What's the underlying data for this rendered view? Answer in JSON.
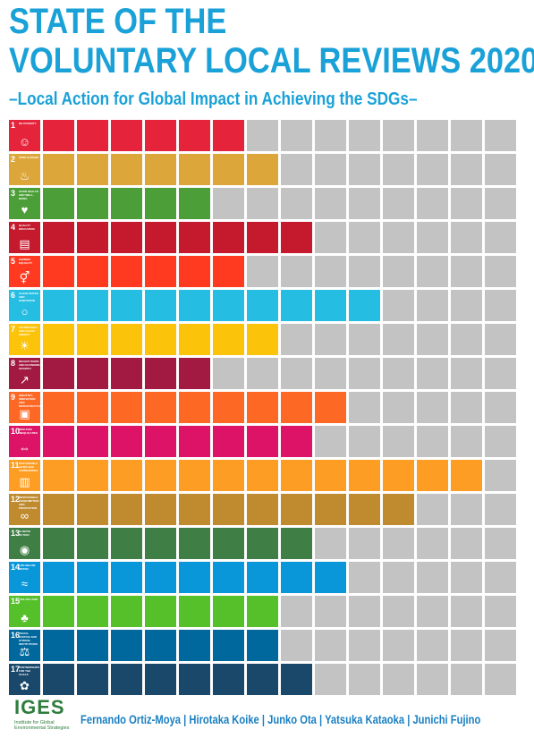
{
  "header": {
    "title_line1": "STATE OF THE",
    "title_line2": "VOLUNTARY LOCAL REVIEWS 2020",
    "subtitle": "–Local Action for Global Impact in Achieving the SDGs–"
  },
  "total_columns": 14,
  "empty_color": "#c3c3c3",
  "goals": [
    {
      "num": "1",
      "label": "NO POVERTY",
      "icon": "family-icon",
      "glyph": "☺",
      "color": "#e5243b",
      "filled": 6
    },
    {
      "num": "2",
      "label": "ZERO HUNGER",
      "icon": "bowl-icon",
      "glyph": "♨",
      "color": "#dda63a",
      "filled": 7
    },
    {
      "num": "3",
      "label": "GOOD HEALTH AND WELL-BEING",
      "icon": "heartbeat-icon",
      "glyph": "♥",
      "color": "#4c9f38",
      "filled": 5
    },
    {
      "num": "4",
      "label": "QUALITY EDUCATION",
      "icon": "book-icon",
      "glyph": "▤",
      "color": "#c5192d",
      "filled": 8
    },
    {
      "num": "5",
      "label": "GENDER EQUALITY",
      "icon": "gender-icon",
      "glyph": "⚥",
      "color": "#ff3a21",
      "filled": 6
    },
    {
      "num": "6",
      "label": "CLEAN WATER AND SANITATION",
      "icon": "water-drop-icon",
      "glyph": "○",
      "color": "#26bde2",
      "filled": 10
    },
    {
      "num": "7",
      "label": "AFFORDABLE AND CLEAN ENERGY",
      "icon": "sun-icon",
      "glyph": "☀",
      "color": "#fcc30b",
      "filled": 7
    },
    {
      "num": "8",
      "label": "DECENT WORK AND ECONOMIC GROWTH",
      "icon": "growth-chart-icon",
      "glyph": "↗",
      "color": "#a21942",
      "filled": 5
    },
    {
      "num": "9",
      "label": "INDUSTRY, INNOVATION AND INFRASTRUCTURE",
      "icon": "cubes-icon",
      "glyph": "▣",
      "color": "#fd6925",
      "filled": 9
    },
    {
      "num": "10",
      "label": "REDUCED INEQUALITIES",
      "icon": "equal-icon",
      "glyph": "⇔",
      "color": "#dd1367",
      "filled": 8
    },
    {
      "num": "11",
      "label": "SUSTAINABLE CITIES AND COMMUNITIES",
      "icon": "city-icon",
      "glyph": "▥",
      "color": "#fd9d24",
      "filled": 13
    },
    {
      "num": "12",
      "label": "RESPONSIBLE CONSUMPTION AND PRODUCTION",
      "icon": "infinity-icon",
      "glyph": "∞",
      "color": "#bf8b2e",
      "filled": 11
    },
    {
      "num": "13",
      "label": "CLIMATE ACTION",
      "icon": "eye-icon",
      "glyph": "◉",
      "color": "#3f7e44",
      "filled": 8
    },
    {
      "num": "14",
      "label": "LIFE BELOW WATER",
      "icon": "fish-icon",
      "glyph": "≈",
      "color": "#0a97d9",
      "filled": 9
    },
    {
      "num": "15",
      "label": "LIFE ON LAND",
      "icon": "tree-icon",
      "glyph": "♣",
      "color": "#56c02b",
      "filled": 7
    },
    {
      "num": "16",
      "label": "PEACE, JUSTICE AND STRONG INSTITUTIONS",
      "icon": "dove-icon",
      "glyph": "⚖",
      "color": "#00689d",
      "filled": 7
    },
    {
      "num": "17",
      "label": "PARTNERSHIPS FOR THE GOALS",
      "icon": "rings-icon",
      "glyph": "✿",
      "color": "#19486a",
      "filled": 8
    }
  ],
  "footer": {
    "logo_text": "IGES",
    "institute": "Institute for Global Environmental Strategies",
    "authors": "Fernando Ortiz-Moya | Hirotaka Koike | Junko Ota | Yatsuka Kataoka | Junichi Fujino"
  }
}
